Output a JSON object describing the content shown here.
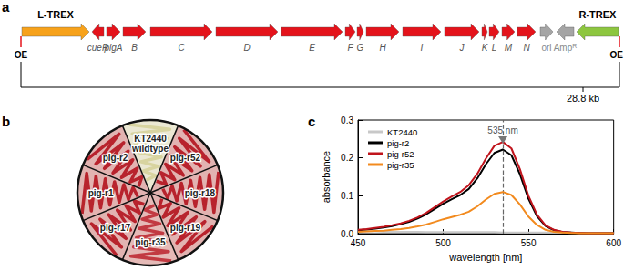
{
  "figure": {
    "panel_labels": [
      "a",
      "b",
      "c"
    ],
    "a": {
      "elements": [
        {
          "label": "L-TREX",
          "kind": "insert",
          "direction": "right",
          "color": "#f7a21b"
        },
        {
          "label": "cueR",
          "kind": "gene",
          "direction": "left",
          "color": "#e4131b"
        },
        {
          "label": "pigA",
          "kind": "gene",
          "direction": "right",
          "color": "#e4131b"
        },
        {
          "label": "B",
          "kind": "gene",
          "direction": "right",
          "color": "#e4131b"
        },
        {
          "label": "C",
          "kind": "gene",
          "direction": "right",
          "color": "#e4131b"
        },
        {
          "label": "D",
          "kind": "gene",
          "direction": "right",
          "color": "#e4131b"
        },
        {
          "label": "E",
          "kind": "gene",
          "direction": "right",
          "color": "#e4131b"
        },
        {
          "label": "F",
          "kind": "gene",
          "direction": "right",
          "color": "#e4131b"
        },
        {
          "label": "G",
          "kind": "gene",
          "direction": "right",
          "color": "#e4131b"
        },
        {
          "label": "H",
          "kind": "gene",
          "direction": "right",
          "color": "#e4131b"
        },
        {
          "label": "I",
          "kind": "gene",
          "direction": "right",
          "color": "#e4131b"
        },
        {
          "label": "J",
          "kind": "gene",
          "direction": "right",
          "color": "#e4131b"
        },
        {
          "label": "K",
          "kind": "gene",
          "direction": "right",
          "color": "#e4131b"
        },
        {
          "label": "L",
          "kind": "gene",
          "direction": "right",
          "color": "#e4131b"
        },
        {
          "label": "M",
          "kind": "gene",
          "direction": "right",
          "color": "#e4131b"
        },
        {
          "label": "N",
          "kind": "gene",
          "direction": "right",
          "color": "#e4131b"
        },
        {
          "label": "ori",
          "kind": "vector",
          "direction": "right",
          "color": "#a5a5a5"
        },
        {
          "label": "Amp",
          "sup": "R",
          "kind": "vector",
          "direction": "left",
          "color": "#a5a5a5"
        },
        {
          "label": "R-TREX",
          "kind": "insert",
          "direction": "left",
          "color": "#8dc63f"
        }
      ],
      "end_label": "OE",
      "end_color": "#e4131b",
      "size_label": "28.8 kb"
    },
    "b": {
      "sectors": [
        {
          "label": [
            "KT2440",
            "wildtype"
          ],
          "color": "#d8d4a0"
        },
        {
          "label": [
            "pig-r52"
          ],
          "color": "#b8232d"
        },
        {
          "label": [
            "pig-r18"
          ],
          "color": "#b8232d"
        },
        {
          "label": [
            "pig-r19"
          ],
          "color": "#b8232d"
        },
        {
          "label": [
            "pig-r35"
          ],
          "color": "#c23a42"
        },
        {
          "label": [
            "pig-r17"
          ],
          "color": "#b8232d"
        },
        {
          "label": [
            "pig-r1"
          ],
          "color": "#b8232d"
        },
        {
          "label": [
            "pig-r2"
          ],
          "color": "#b8232d"
        }
      ]
    }
  },
  "chart_data": {
    "type": "line",
    "x": [
      450,
      455,
      460,
      465,
      470,
      475,
      480,
      485,
      490,
      495,
      500,
      505,
      510,
      515,
      520,
      525,
      530,
      535,
      540,
      545,
      550,
      555,
      560,
      565,
      570,
      575,
      580,
      585,
      590,
      595,
      600
    ],
    "series": [
      {
        "name": "KT2440",
        "color": "#c8c8c8",
        "values": [
          0.006,
          0.006,
          0.006,
          0.005,
          0.005,
          0.005,
          0.005,
          0.005,
          0.004,
          0.004,
          0.004,
          0.004,
          0.004,
          0.004,
          0.004,
          0.004,
          0.004,
          0.003,
          0.003,
          0.003,
          0.003,
          0.003,
          0.003,
          0.003,
          0.003,
          0.003,
          0.002,
          0.002,
          0.002,
          0.002,
          0.002
        ]
      },
      {
        "name": "pig-r2",
        "color": "#000000",
        "values": [
          0.009,
          0.011,
          0.013,
          0.016,
          0.02,
          0.025,
          0.031,
          0.04,
          0.051,
          0.065,
          0.079,
          0.091,
          0.102,
          0.118,
          0.146,
          0.183,
          0.213,
          0.222,
          0.207,
          0.157,
          0.092,
          0.046,
          0.02,
          0.009,
          0.004,
          0.003,
          0.002,
          0.001,
          0.001,
          0.001,
          0.001
        ]
      },
      {
        "name": "pig-r52",
        "color": "#c0141c",
        "values": [
          0.01,
          0.012,
          0.015,
          0.018,
          0.022,
          0.027,
          0.034,
          0.043,
          0.055,
          0.07,
          0.085,
          0.098,
          0.11,
          0.128,
          0.158,
          0.198,
          0.232,
          0.242,
          0.225,
          0.17,
          0.1,
          0.05,
          0.022,
          0.01,
          0.005,
          0.003,
          0.002,
          0.001,
          0.001,
          0.001,
          0.001
        ]
      },
      {
        "name": "pig-r35",
        "color": "#f28a1e",
        "values": [
          0.005,
          0.006,
          0.007,
          0.008,
          0.01,
          0.012,
          0.015,
          0.019,
          0.024,
          0.031,
          0.038,
          0.044,
          0.05,
          0.058,
          0.072,
          0.09,
          0.105,
          0.11,
          0.102,
          0.077,
          0.045,
          0.023,
          0.01,
          0.005,
          0.003,
          0.002,
          0.001,
          0.001,
          0.001,
          0.001,
          0.001
        ]
      }
    ],
    "x_label": "wavelength [nm]",
    "y_label": "absorbance",
    "xlim": [
      450,
      600
    ],
    "xticks": [
      450,
      500,
      550,
      600
    ],
    "ylim": [
      0,
      0.3
    ],
    "yticks": [
      {
        "value": 0,
        "label": "0.0"
      },
      {
        "value": 0.1,
        "label": "0.1"
      },
      {
        "value": 0.2,
        "label": "0.2"
      },
      {
        "value": 0.3,
        "label": "0.3"
      }
    ],
    "legend": "top-left",
    "grid": false,
    "annotations": [
      {
        "x": 535,
        "label": "535 nm"
      }
    ]
  }
}
